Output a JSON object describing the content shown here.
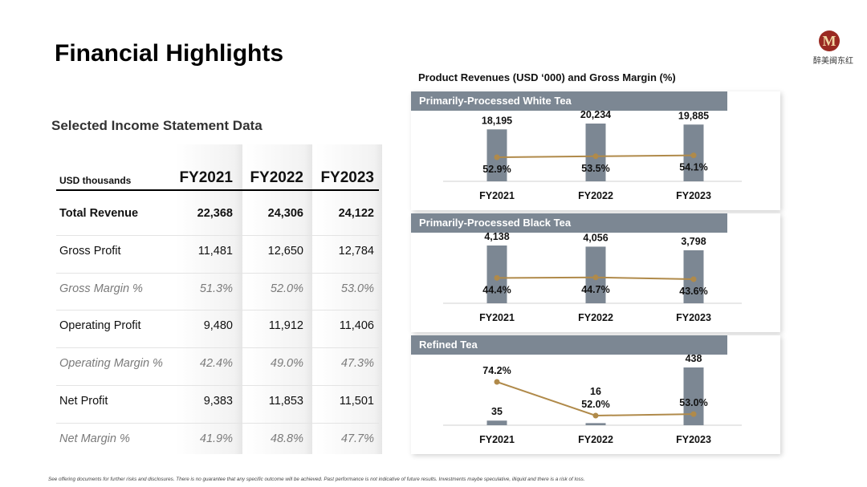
{
  "page": {
    "title": "Financial Highlights",
    "logo_letter": "M",
    "logo_text": "醉美闽东红",
    "footnote": "See offering documents for further risks and disclosures. There is no guarantee that any specific outcome will be achieved. Past performance is not indicative of future results. Investments maybe speculative, illiquid and there is a risk of loss."
  },
  "colors": {
    "bar": "#7c8793",
    "line": "#b08a4a",
    "panel_header": "#7c8793"
  },
  "income_table": {
    "title": "Selected Income Statement Data",
    "unit_label": "USD thousands",
    "years": [
      "FY2021",
      "FY2022",
      "FY2023"
    ],
    "rows": [
      {
        "label": "Total Revenue",
        "values": [
          "22,368",
          "24,306",
          "24,122"
        ],
        "style": "bold"
      },
      {
        "label": "Gross Profit",
        "values": [
          "11,481",
          "12,650",
          "12,784"
        ],
        "style": "normal"
      },
      {
        "label": "Gross Margin %",
        "values": [
          "51.3%",
          "52.0%",
          "53.0%"
        ],
        "style": "italic"
      },
      {
        "label": "Operating Profit",
        "values": [
          "9,480",
          "11,912",
          "11,406"
        ],
        "style": "normal"
      },
      {
        "label": "Operating Margin %",
        "values": [
          "42.4%",
          "49.0%",
          "47.3%"
        ],
        "style": "italic"
      },
      {
        "label": "Net Profit",
        "values": [
          "9,383",
          "11,853",
          "11,501"
        ],
        "style": "normal"
      },
      {
        "label": "Net Margin %",
        "values": [
          "41.9%",
          "48.8%",
          "47.7%"
        ],
        "style": "italic"
      }
    ]
  },
  "chart_section": {
    "title": "Product Revenues (USD ‘000) and Gross Margin (%)"
  },
  "chart_data": [
    {
      "type": "bar",
      "title": "Primarily-Processed White Tea",
      "categories": [
        "FY2021",
        "FY2022",
        "FY2023"
      ],
      "series": [
        {
          "values": [
            18195,
            20234,
            19885
          ]
        },
        {
          "type": "line",
          "values": [
            52.9,
            53.5,
            54.1
          ]
        }
      ],
      "bar_labels": [
        "18,195",
        "20,234",
        "19,885"
      ],
      "line_labels": [
        "52.9%",
        "53.5%",
        "54.1%"
      ]
    },
    {
      "type": "bar",
      "title": "Primarily-Processed Black Tea",
      "categories": [
        "FY2021",
        "FY2022",
        "FY2023"
      ],
      "series": [
        {
          "values": [
            4138,
            4056,
            3798
          ]
        },
        {
          "type": "line",
          "values": [
            44.4,
            44.7,
            43.6
          ]
        }
      ],
      "bar_labels": [
        "4,138",
        "4,056",
        "3,798"
      ],
      "line_labels": [
        "44.4%",
        "44.7%",
        "43.6%"
      ]
    },
    {
      "type": "bar",
      "title": "Refined Tea",
      "categories": [
        "FY2021",
        "FY2022",
        "FY2023"
      ],
      "series": [
        {
          "values": [
            35,
            16,
            438
          ]
        },
        {
          "type": "line",
          "values": [
            74.2,
            52.0,
            53.0
          ]
        }
      ],
      "bar_labels": [
        "35",
        "16",
        "438"
      ],
      "line_labels": [
        "74.2%",
        "52.0%",
        "53.0%"
      ]
    }
  ]
}
